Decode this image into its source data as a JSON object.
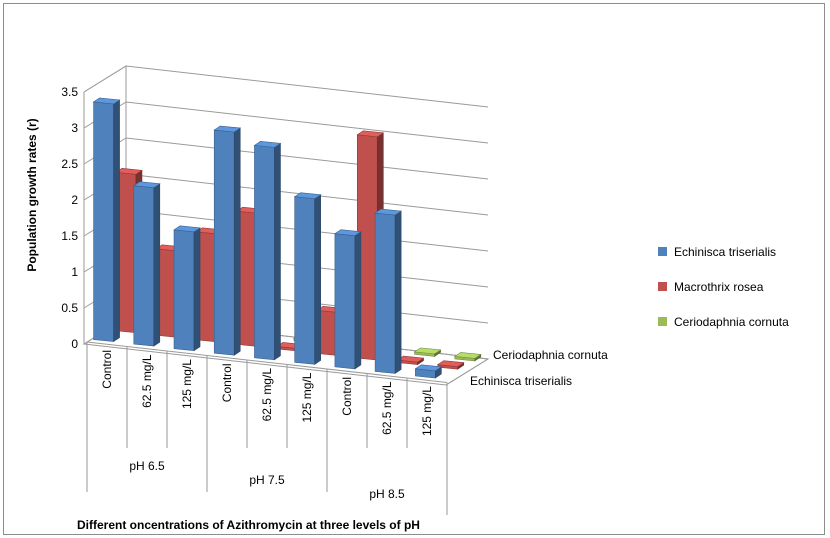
{
  "chart_data": {
    "type": "bar",
    "subtype": "3d-clustered-column",
    "title": "",
    "ylabel": "Population growth rates (r)",
    "xlabel": "Different oncentrations of Azithromycin at three levels of pH",
    "ylim": [
      0,
      3.5
    ],
    "yticks": [
      "0",
      "0.5",
      "1",
      "1.5",
      "2",
      "2.5",
      "3",
      "3.5"
    ],
    "grid": true,
    "legend_position": "right",
    "groups": [
      {
        "label": "pH 6.5",
        "categories": [
          "Control",
          "62.5 mg/L",
          "125 mg/L"
        ]
      },
      {
        "label": "pH 7.5",
        "categories": [
          "Control",
          "62.5 mg/L",
          "125 mg/L"
        ]
      },
      {
        "label": "pH 8.5",
        "categories": [
          "Control",
          "62.5 mg/L",
          "125 mg/L"
        ]
      }
    ],
    "categories": [
      "Control",
      "62.5 mg/L",
      "125 mg/L",
      "Control",
      "62.5 mg/L",
      "125 mg/L",
      "Control",
      "62.5 mg/L",
      "125 mg/L"
    ],
    "depth_axis_labels": [
      "Ceriodaphnia cornuta",
      "Echinisca triserialis"
    ],
    "series": [
      {
        "name": "Echinisca triserialis",
        "color": "#4f81bd",
        "values": [
          3.3,
          2.2,
          1.65,
          3.1,
          2.95,
          2.3,
          1.85,
          2.2,
          0.1
        ]
      },
      {
        "name": "Macrothrix rosea",
        "color": "#c0504d",
        "values": [
          2.2,
          1.2,
          1.5,
          1.85,
          0.0,
          0.6,
          3.1,
          0.0,
          0.0
        ]
      },
      {
        "name": "Ceriodaphnia cornuta",
        "color": "#9bbb59",
        "values": [
          0,
          0,
          0,
          0,
          0,
          0,
          0,
          0,
          0
        ]
      }
    ]
  }
}
